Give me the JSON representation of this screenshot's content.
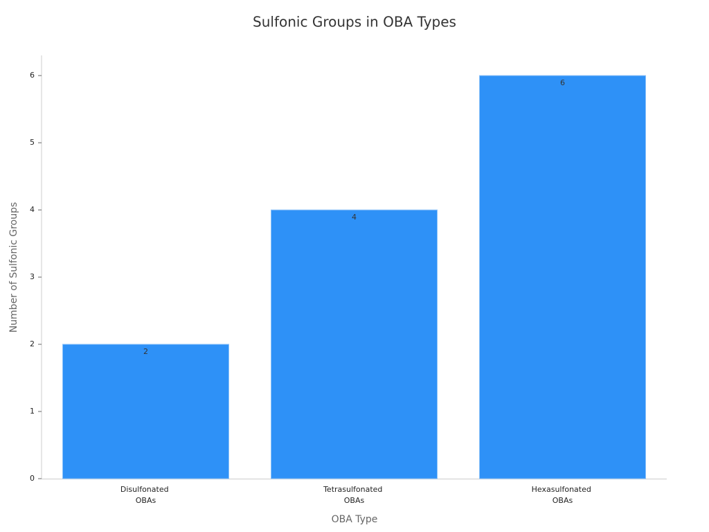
{
  "chart_data": {
    "type": "bar",
    "title": "Sulfonic Groups in OBA Types",
    "x_label": "OBA Type",
    "y_label": "Number of Sulfonic Groups",
    "categories": [
      "Disulfonated OBAs",
      "Tetrasulfonated OBAs",
      "Hexasulfonated OBAs"
    ],
    "values": [
      2,
      4,
      6
    ],
    "color": "#2e91f7",
    "ylim": [
      0,
      6.3
    ],
    "yticks": [
      0,
      1,
      2,
      3,
      4,
      5,
      6
    ],
    "grid": false
  }
}
